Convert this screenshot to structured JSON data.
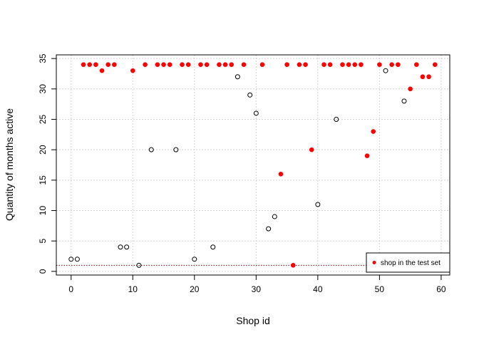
{
  "chart_data": {
    "type": "scatter",
    "xlabel": "Shop id",
    "ylabel": "Quantity of months active",
    "xlim": [
      -2.4,
      61.4
    ],
    "ylim": [
      -0.6,
      35.6
    ],
    "xticks": [
      0,
      10,
      20,
      30,
      40,
      50,
      60
    ],
    "yticks": [
      0,
      5,
      10,
      15,
      20,
      25,
      30,
      35
    ],
    "grid": true,
    "reference_line": {
      "y": 1,
      "color": "#8b0000",
      "style": "dotted"
    },
    "legend": {
      "position": "bottom-right",
      "entries": [
        "shop in the test set"
      ]
    },
    "colors": {
      "test": "#ff0000",
      "other": "#000000"
    },
    "series": [
      {
        "name": "shop in the test set",
        "marker": "filled",
        "color": "#ff0000",
        "points": [
          [
            2,
            34
          ],
          [
            3,
            34
          ],
          [
            4,
            34
          ],
          [
            5,
            33
          ],
          [
            6,
            34
          ],
          [
            7,
            34
          ],
          [
            10,
            33
          ],
          [
            12,
            34
          ],
          [
            14,
            34
          ],
          [
            15,
            34
          ],
          [
            16,
            34
          ],
          [
            18,
            34
          ],
          [
            19,
            34
          ],
          [
            21,
            34
          ],
          [
            22,
            34
          ],
          [
            24,
            34
          ],
          [
            25,
            34
          ],
          [
            26,
            34
          ],
          [
            28,
            34
          ],
          [
            31,
            34
          ],
          [
            34,
            16
          ],
          [
            35,
            34
          ],
          [
            36,
            1
          ],
          [
            37,
            34
          ],
          [
            38,
            34
          ],
          [
            39,
            20
          ],
          [
            41,
            34
          ],
          [
            42,
            34
          ],
          [
            44,
            34
          ],
          [
            45,
            34
          ],
          [
            46,
            34
          ],
          [
            47,
            34
          ],
          [
            48,
            19
          ],
          [
            49,
            23
          ],
          [
            50,
            34
          ],
          [
            52,
            34
          ],
          [
            53,
            34
          ],
          [
            55,
            30
          ],
          [
            56,
            34
          ],
          [
            57,
            32
          ],
          [
            58,
            32
          ],
          [
            59,
            34
          ]
        ]
      },
      {
        "marker": "open",
        "color": "#000000",
        "points": [
          [
            0,
            2
          ],
          [
            1,
            2
          ],
          [
            8,
            4
          ],
          [
            9,
            4
          ],
          [
            11,
            1
          ],
          [
            13,
            20
          ],
          [
            17,
            20
          ],
          [
            20,
            2
          ],
          [
            23,
            4
          ],
          [
            27,
            32
          ],
          [
            29,
            29
          ],
          [
            30,
            26
          ],
          [
            32,
            7
          ],
          [
            33,
            9
          ],
          [
            40,
            11
          ],
          [
            43,
            25
          ],
          [
            51,
            33
          ],
          [
            54,
            28
          ]
        ]
      }
    ]
  }
}
